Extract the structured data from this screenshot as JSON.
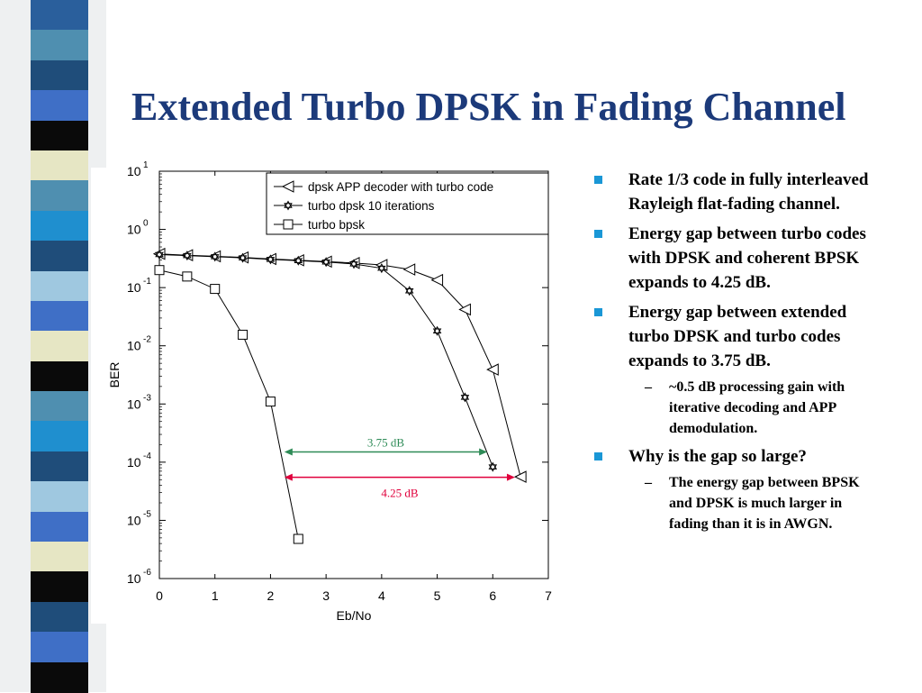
{
  "slide": {
    "title": "Extended Turbo DPSK in Fading Channel",
    "stripe_colors": [
      "#2a5f9c",
      "#4f8fb0",
      "#1f4d7a",
      "#3f6fc6",
      "#0a0a0a",
      "#e6e6c4",
      "#4f8fb0",
      "#1f8fcf",
      "#1f4d7a",
      "#9fc8e0",
      "#3f6fc6",
      "#e6e6c4",
      "#0a0a0a",
      "#4f8fb0",
      "#1f8fcf",
      "#1f4d7a",
      "#9fc8e0",
      "#3f6fc6",
      "#e6e6c4",
      "#0a0a0a",
      "#1f4d7a",
      "#3f6fc6",
      "#0a0a0a"
    ]
  },
  "bullets": [
    {
      "text": "Rate 1/3 code in fully interleaved Rayleigh flat-fading channel.",
      "subs": []
    },
    {
      "text": "Energy gap between turbo codes with DPSK and coherent BPSK expands to 4.25 dB.",
      "subs": []
    },
    {
      "text": "Energy gap between extended turbo DPSK and turbo codes expands to 3.75 dB.",
      "subs": [
        "~0.5 dB processing gain with iterative decoding and APP demodulation."
      ]
    },
    {
      "text": "Why is the gap so large?",
      "subs": [
        "The energy gap between BPSK and DPSK is much larger in fading than it is in AWGN."
      ]
    }
  ],
  "bullet_marker_color": "#1a97d6",
  "chart_data": {
    "type": "line",
    "xlabel": "Eb/No",
    "ylabel": "BER",
    "xlim": [
      0,
      7
    ],
    "ylim_log10": [
      -6,
      1
    ],
    "y_scale": "log",
    "x_ticks": [
      0,
      1,
      2,
      3,
      4,
      5,
      6,
      7
    ],
    "y_tick_base": "10",
    "y_tick_exponents": [
      "1",
      "0",
      "-1",
      "-2",
      "-3",
      "-4",
      "-5",
      "-6"
    ],
    "y_tick_exp_values": [
      1,
      0,
      -1,
      -2,
      -3,
      -4,
      -5,
      -6
    ],
    "legend_position": "top-right",
    "series": [
      {
        "name": "dpsk APP decoder with turbo code",
        "marker": "triangle-left",
        "x": [
          0,
          0.5,
          1,
          1.5,
          2,
          2.5,
          3,
          3.5,
          4,
          4.5,
          5,
          5.5,
          6,
          6.5
        ],
        "y": [
          0.38,
          0.36,
          0.345,
          0.33,
          0.31,
          0.295,
          0.28,
          0.265,
          0.245,
          0.205,
          0.135,
          0.042,
          0.0039,
          5.6e-05
        ]
      },
      {
        "name": "turbo dpsk 10 iterations",
        "marker": "star",
        "x": [
          0,
          0.5,
          1,
          1.5,
          2,
          2.5,
          3,
          3.5,
          4,
          4.5,
          5,
          5.5,
          6
        ],
        "y": [
          0.37,
          0.355,
          0.34,
          0.325,
          0.305,
          0.29,
          0.275,
          0.255,
          0.215,
          0.088,
          0.018,
          0.0013,
          8.3e-05
        ]
      },
      {
        "name": "turbo bpsk",
        "marker": "square",
        "x": [
          0,
          0.5,
          1,
          1.5,
          2,
          2.5
        ],
        "y": [
          0.2,
          0.155,
          0.095,
          0.0155,
          0.0011,
          4.8e-06
        ]
      }
    ],
    "annotations": [
      {
        "text": "3.75 dB",
        "x_from": 2.25,
        "x_to": 5.9,
        "y": 0.00015,
        "color": "#2e8b57"
      },
      {
        "text": "4.25 dB",
        "x_from": 2.25,
        "x_to": 6.4,
        "y": 5.5e-05,
        "color": "#e0003c"
      }
    ]
  }
}
